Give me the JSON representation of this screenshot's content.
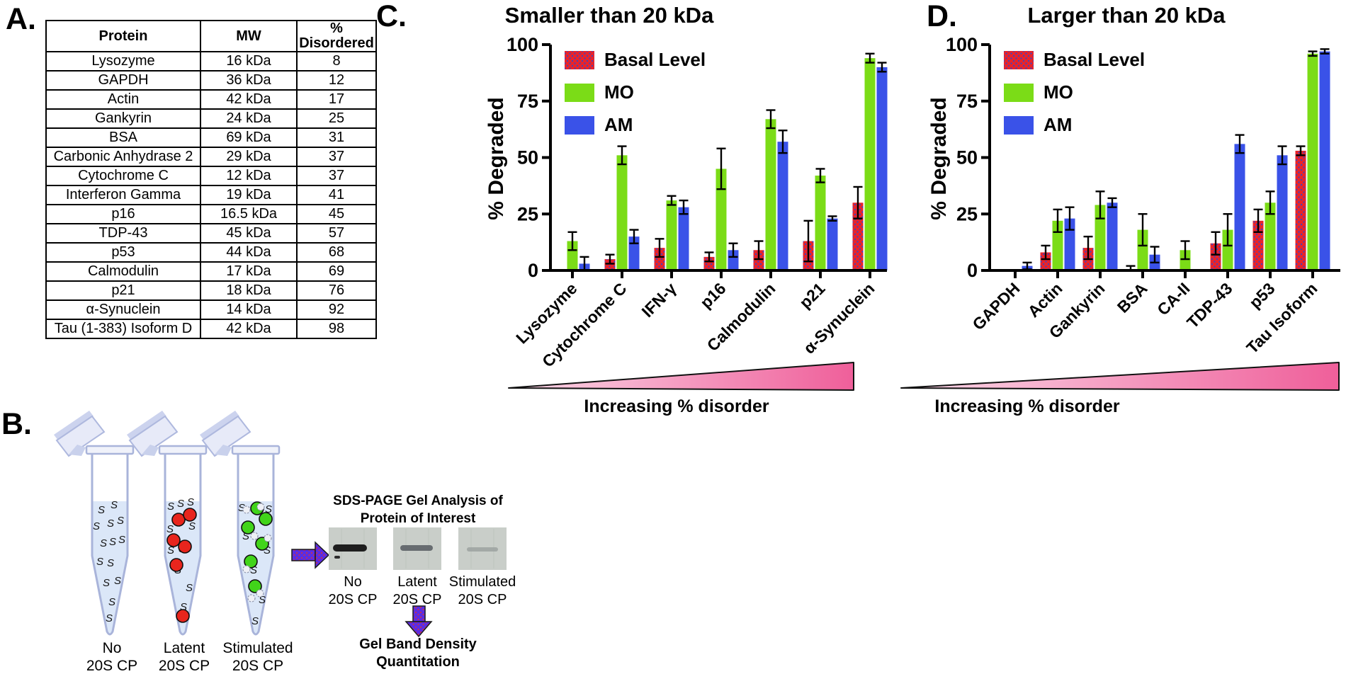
{
  "colors": {
    "basal_red": "#e8232a",
    "basal_dot": "#3344cc",
    "mo_green": "#7bdc17",
    "am_blue": "#3a52e8",
    "axis": "#000000",
    "triangle_light": "#fbd9e8",
    "triangle_dark": "#ef5f9a",
    "arrow_purple": "#5b2ce2",
    "arrow_dot": "#e03131",
    "tube_liquid": "#dbe7f8",
    "tube_outline": "#a9b4da",
    "gel_bg": "#c9cec9"
  },
  "panels": {
    "a": {
      "label": "A.",
      "table": {
        "headers": [
          "Protein",
          "MW",
          "% Disordered"
        ],
        "rows": [
          [
            "Lysozyme",
            "16 kDa",
            "8"
          ],
          [
            "GAPDH",
            "36 kDa",
            "12"
          ],
          [
            "Actin",
            "42 kDa",
            "17"
          ],
          [
            "Gankyrin",
            "24 kDa",
            "25"
          ],
          [
            "BSA",
            "69 kDa",
            "31"
          ],
          [
            "Carbonic Anhydrase 2",
            "29 kDa",
            "37"
          ],
          [
            "Cytochrome C",
            "12 kDa",
            "37"
          ],
          [
            "Interferon Gamma",
            "19 kDa",
            "41"
          ],
          [
            "p16",
            "16.5 kDa",
            "45"
          ],
          [
            "TDP-43",
            "45 kDa",
            "57"
          ],
          [
            "p53",
            "44 kDa",
            "68"
          ],
          [
            "Calmodulin",
            "17 kDa",
            "69"
          ],
          [
            "p21",
            "18 kDa",
            "76"
          ],
          [
            "α-Synuclein",
            "14 kDa",
            "92"
          ],
          [
            "Tau (1-383) Isoform D",
            "42 kDa",
            "98"
          ]
        ]
      }
    },
    "b": {
      "label": "B.",
      "tubes": [
        {
          "line1": "No",
          "line2": "20S CP"
        },
        {
          "line1": "Latent",
          "line2": "20S CP"
        },
        {
          "line1": "Stimulated",
          "line2": "20S CP"
        }
      ],
      "gel": {
        "title1": "SDS-PAGE Gel Analysis of",
        "title2": "Protein of Interest",
        "lanes": [
          {
            "line1": "No",
            "line2": "20S CP"
          },
          {
            "line1": "Latent",
            "line2": "20S CP"
          },
          {
            "line1": "Stimulated",
            "line2": "20S CP"
          }
        ]
      },
      "quant1": "Gel Band Density",
      "quant2": "Quantitation"
    },
    "c": {
      "label": "C."
    },
    "d": {
      "label": "D."
    }
  },
  "chart_data": [
    {
      "type": "bar",
      "title": "Smaller than 20 kDa",
      "ylabel": "% Degraded",
      "xlabel": "",
      "ylim": [
        0,
        100
      ],
      "yticks": [
        0,
        25,
        50,
        75,
        100
      ],
      "grid": false,
      "legend_position": "top-left-inside",
      "categories": [
        "Lysozyme",
        "Cytochrome C",
        "IFN-γ",
        "p16",
        "Calmodulin",
        "p21",
        "α-Synuclein"
      ],
      "series": [
        {
          "name": "Basal Level",
          "values": [
            0,
            5,
            10,
            6,
            9,
            13,
            30
          ],
          "errors": [
            0,
            2,
            4,
            2,
            4,
            9,
            7
          ]
        },
        {
          "name": "MO",
          "values": [
            13,
            51,
            31,
            45,
            67,
            42,
            94
          ],
          "errors": [
            4,
            4,
            2,
            9,
            4,
            3,
            2
          ]
        },
        {
          "name": "AM",
          "values": [
            3,
            15,
            28,
            9,
            57,
            23,
            90
          ],
          "errors": [
            3,
            3,
            3,
            3,
            5,
            1,
            2
          ]
        }
      ],
      "footer": "Increasing % disorder"
    },
    {
      "type": "bar",
      "title": "Larger than 20 kDa",
      "ylabel": "% Degraded",
      "xlabel": "",
      "ylim": [
        0,
        100
      ],
      "yticks": [
        0,
        25,
        50,
        75,
        100
      ],
      "grid": false,
      "legend_position": "top-left-inside",
      "categories": [
        "GAPDH",
        "Actin",
        "Gankyrin",
        "BSA",
        "CA-II",
        "TDP-43",
        "p53",
        "Tau Isoform"
      ],
      "series": [
        {
          "name": "Basal Level",
          "values": [
            0,
            8,
            10,
            0.5,
            0,
            12,
            22,
            53
          ],
          "errors": [
            0,
            3,
            5,
            1.5,
            0,
            5,
            5,
            2
          ]
        },
        {
          "name": "MO",
          "values": [
            0,
            22,
            29,
            18,
            9,
            18,
            30,
            96
          ],
          "errors": [
            0,
            5,
            6,
            7,
            4,
            7,
            5,
            1
          ]
        },
        {
          "name": "AM",
          "values": [
            2,
            23,
            30,
            7,
            0,
            56,
            51,
            97
          ],
          "errors": [
            1.5,
            5,
            2,
            3.5,
            0,
            4,
            4,
            1
          ]
        }
      ],
      "footer": "Increasing % disorder"
    }
  ]
}
